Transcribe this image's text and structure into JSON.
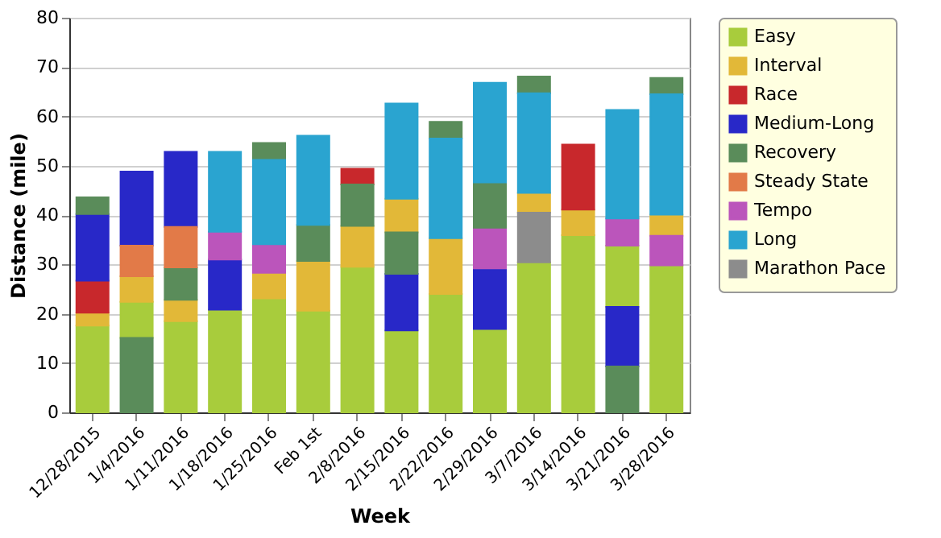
{
  "chart_data": {
    "type": "bar",
    "xlabel": "Week",
    "ylabel": "Distance (mile)",
    "categories": [
      "12/28/2015",
      "1/4/2016",
      "1/11/2016",
      "1/18/2016",
      "1/25/2016",
      "Feb 1st",
      "2/8/2016",
      "2/15/2016",
      "2/22/2016",
      "2/29/2016",
      "3/7/2016",
      "3/14/2016",
      "3/21/2016",
      "3/28/2016"
    ],
    "ylim": [
      0,
      80
    ],
    "yticks": [
      0,
      10,
      20,
      30,
      40,
      50,
      60,
      70,
      80
    ],
    "grid": "y",
    "legend": "top right",
    "series": [
      {
        "name": "Easy",
        "color": "#a8cc3c",
        "base": [
          0,
          15.1,
          0,
          0,
          0,
          0,
          0,
          0,
          0,
          0,
          0,
          0,
          21.4,
          0
        ],
        "values": [
          17.6,
          7.3,
          18.5,
          20.8,
          23.1,
          20.6,
          29.5,
          16.6,
          24.0,
          16.9,
          30.4,
          35.9,
          12.4,
          29.8
        ]
      },
      {
        "name": "Interval",
        "color": "#e2b838",
        "base": [
          17.6,
          22.4,
          18.5,
          null,
          23.1,
          20.6,
          29.5,
          36.5,
          24.0,
          null,
          40.5,
          35.9,
          null,
          35.8
        ],
        "values": [
          2.6,
          5.2,
          4.3,
          null,
          5.2,
          10.1,
          8.3,
          6.8,
          11.3,
          null,
          4.0,
          5.2,
          null,
          4.3
        ]
      },
      {
        "name": "Race",
        "color": "#c8282c",
        "base": [
          20.2,
          null,
          null,
          null,
          null,
          null,
          46.2,
          null,
          null,
          null,
          null,
          41.1,
          null,
          null
        ],
        "values": [
          6.5,
          null,
          null,
          null,
          null,
          null,
          3.2,
          null,
          null,
          null,
          null,
          13.2,
          null,
          null
        ]
      },
      {
        "name": "Medium-Long",
        "color": "#2828c8",
        "base": [
          26.7,
          33.8,
          37.6,
          20.8,
          null,
          null,
          null,
          16.6,
          null,
          16.9,
          null,
          null,
          9.3,
          null
        ],
        "values": [
          13.5,
          15.0,
          15.2,
          10.2,
          null,
          null,
          null,
          11.5,
          null,
          12.3,
          null,
          null,
          12.1,
          null
        ]
      },
      {
        "name": "Recovery",
        "color": "#5a8c5a",
        "base": [
          40.2,
          0,
          22.8,
          null,
          51.2,
          30.7,
          37.8,
          28.1,
          55.5,
          37.1,
          64.7,
          null,
          0,
          64.5
        ],
        "values": [
          3.4,
          15.1,
          6.6,
          null,
          3.4,
          7.3,
          8.4,
          8.4,
          3.4,
          9.5,
          3.4,
          null,
          9.3,
          3.3
        ]
      },
      {
        "name": "Steady State",
        "color": "#e27a48",
        "base": [
          null,
          27.6,
          29.4,
          null,
          null,
          null,
          null,
          null,
          null,
          null,
          null,
          null,
          null,
          null
        ],
        "values": [
          null,
          6.2,
          8.2,
          null,
          null,
          null,
          null,
          null,
          null,
          null,
          null,
          null,
          null,
          null
        ]
      },
      {
        "name": "Tempo",
        "color": "#bb55bb",
        "base": [
          null,
          null,
          null,
          31.0,
          28.3,
          null,
          null,
          null,
          null,
          29.2,
          null,
          null,
          33.8,
          29.8
        ],
        "values": [
          null,
          null,
          null,
          5.6,
          5.8,
          null,
          null,
          null,
          null,
          7.9,
          null,
          null,
          5.5,
          6.0
        ]
      },
      {
        "name": "Long",
        "color": "#2aa4d0",
        "base": [
          null,
          null,
          null,
          36.6,
          34.1,
          38.0,
          null,
          43.3,
          35.3,
          46.6,
          44.5,
          null,
          39.3,
          40.1
        ],
        "values": [
          null,
          null,
          null,
          16.2,
          17.1,
          18.1,
          null,
          19.3,
          20.2,
          20.2,
          20.2,
          null,
          22.0,
          24.4
        ]
      },
      {
        "name": "Marathon Pace",
        "color": "#8c8c8c",
        "base": [
          null,
          null,
          null,
          null,
          null,
          null,
          null,
          null,
          null,
          null,
          30.4,
          null,
          null,
          null
        ],
        "values": [
          null,
          null,
          null,
          null,
          null,
          null,
          null,
          null,
          null,
          null,
          10.1,
          null,
          null,
          null
        ]
      }
    ]
  }
}
